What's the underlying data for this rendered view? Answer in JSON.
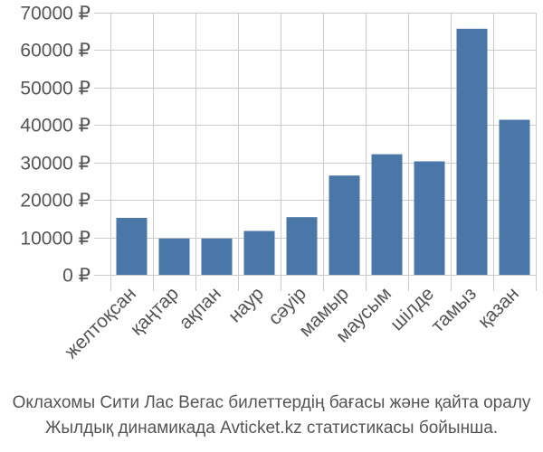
{
  "chart_data": {
    "type": "bar",
    "categories": [
      "желтоқсан",
      "қаңтар",
      "ақпан",
      "наур",
      "сәуір",
      "мамыр",
      "маусым",
      "шілде",
      "тамыз",
      "қазан"
    ],
    "values": [
      15200,
      9700,
      9700,
      11700,
      15400,
      26500,
      32200,
      30300,
      65700,
      41400
    ],
    "yticks": [
      "0 ₽",
      "10000 ₽",
      "20000 ₽",
      "30000 ₽",
      "40000 ₽",
      "50000 ₽",
      "60000 ₽",
      "70000 ₽"
    ],
    "ylim": [
      0,
      70000
    ],
    "grid": true,
    "bar_color": "#4a76a8",
    "grid_color": "#cccccc"
  },
  "caption": {
    "line1": "Оклахомы Сити Лас Вегас билеттердің бағасы және қайта оралу",
    "line2": "Жылдық динамикада Avticket.kz статистикасы бойынша."
  }
}
